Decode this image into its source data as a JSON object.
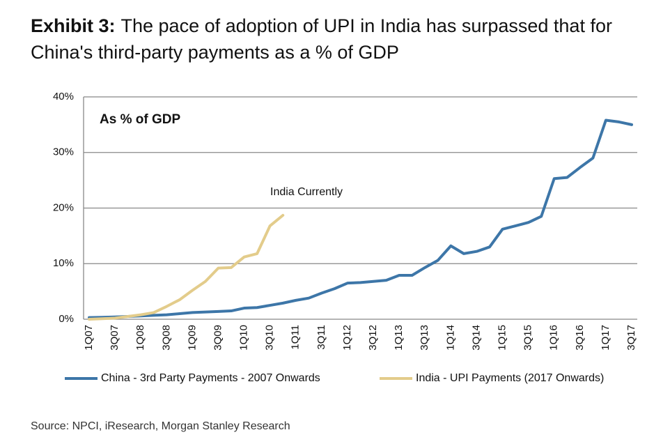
{
  "chart_data": {
    "type": "line",
    "title_label": "Exhibit 3:",
    "title": "The pace of adoption of UPI in India has surpassed that for China's third-party payments as a % of GDP",
    "subtitle": "As % of GDP",
    "annotation": "India Currently",
    "source": "Source: NPCI, iResearch, Morgan Stanley Research",
    "categories": [
      "1Q07",
      null,
      "3Q07",
      null,
      "1Q08",
      null,
      "3Q08",
      null,
      "1Q09",
      null,
      "3Q09",
      null,
      "1Q10",
      null,
      "3Q10",
      null,
      "1Q11",
      null,
      "3Q11",
      null,
      "1Q12",
      null,
      "3Q12",
      null,
      "1Q13",
      null,
      "3Q13",
      null,
      "1Q14",
      null,
      "3Q14",
      null,
      "1Q15",
      null,
      "3Q15",
      null,
      "1Q16",
      null,
      "3Q16",
      null,
      "1Q17",
      null,
      "3Q17"
    ],
    "series": [
      {
        "name": "China - 3rd Party Payments - 2007 Onwards",
        "color": "#3d76a8",
        "values": [
          0.3,
          0.35,
          0.4,
          0.5,
          0.6,
          0.7,
          0.8,
          1.0,
          1.2,
          1.3,
          1.4,
          1.5,
          2.0,
          2.1,
          2.5,
          2.9,
          3.4,
          3.8,
          4.7,
          5.5,
          6.5,
          6.6,
          6.8,
          7.0,
          7.9,
          7.9,
          9.3,
          10.6,
          13.2,
          11.8,
          12.2,
          13.0,
          16.2,
          16.8,
          17.4,
          18.5,
          25.3,
          25.5,
          27.3,
          29.0,
          35.8,
          35.5,
          35.0
        ]
      },
      {
        "name": "India - UPI Payments (2017 Onwards)",
        "color": "#e3cc8b",
        "values": [
          0,
          0.1,
          0.2,
          0.5,
          0.8,
          1.2,
          2.3,
          3.5,
          5.2,
          6.8,
          9.2,
          9.3,
          11.2,
          11.8,
          16.8,
          18.7,
          null,
          null,
          null,
          null,
          null,
          null,
          null,
          null,
          null,
          null,
          null,
          null,
          null,
          null,
          null,
          null,
          null,
          null,
          null,
          null,
          null,
          null,
          null,
          null,
          null,
          null,
          null
        ]
      }
    ],
    "ylim": [
      0,
      40
    ],
    "yticks": [
      {
        "value": 0,
        "label": "0%"
      },
      {
        "value": 10,
        "label": "10%"
      },
      {
        "value": 20,
        "label": "20%"
      },
      {
        "value": 30,
        "label": "30%"
      },
      {
        "value": 40,
        "label": "40%"
      }
    ],
    "grid": true
  }
}
